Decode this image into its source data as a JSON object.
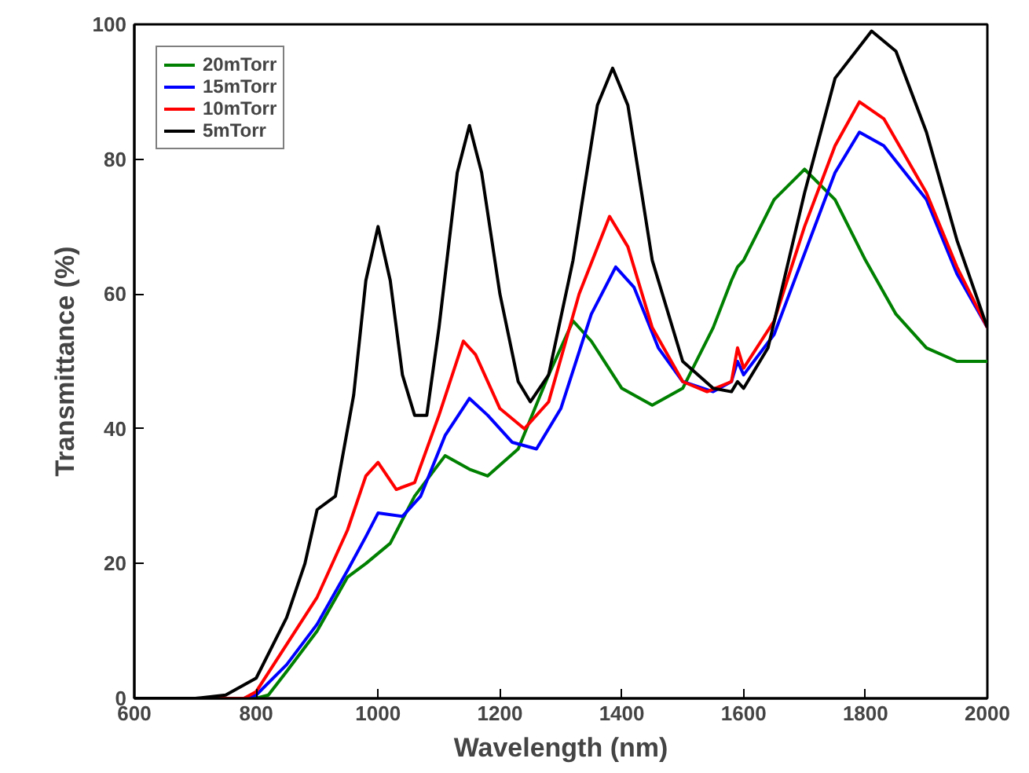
{
  "chart_data": {
    "type": "line",
    "xlabel": "Wavelength (nm)",
    "ylabel": "Transmittance (%)",
    "xlim": [
      600,
      2000
    ],
    "xticks": [
      600,
      800,
      1000,
      1200,
      1400,
      1600,
      1800,
      2000
    ],
    "ylim": [
      0,
      100
    ],
    "yticks": [
      0,
      20,
      40,
      60,
      80,
      100
    ],
    "grid": false,
    "legend": "top left",
    "marker": "none",
    "line_style": "solid",
    "series": [
      {
        "name": "20mTorr",
        "color": "#008000",
        "x": [
          600,
          700,
          800,
          820,
          850,
          900,
          950,
          980,
          1020,
          1060,
          1110,
          1150,
          1180,
          1230,
          1280,
          1320,
          1350,
          1400,
          1450,
          1500,
          1550,
          1580,
          1590,
          1600,
          1650,
          1700,
          1750,
          1800,
          1850,
          1900,
          1950,
          2000
        ],
        "values": [
          0,
          0,
          0,
          0.5,
          4,
          10,
          18,
          20,
          23,
          30,
          36,
          34,
          33,
          37,
          48,
          56,
          53,
          46,
          43.5,
          46,
          55,
          62,
          64,
          65,
          74,
          78.5,
          74,
          65,
          57,
          52,
          50,
          50
        ]
      },
      {
        "name": "15mTorr",
        "color": "#0000ff",
        "x": [
          600,
          700,
          780,
          800,
          850,
          900,
          950,
          980,
          1000,
          1040,
          1070,
          1110,
          1150,
          1180,
          1220,
          1260,
          1300,
          1350,
          1390,
          1420,
          1460,
          1500,
          1550,
          1580,
          1590,
          1600,
          1650,
          1700,
          1750,
          1790,
          1830,
          1900,
          1950,
          2000
        ],
        "values": [
          0,
          0,
          0,
          0.5,
          5,
          11,
          19,
          24,
          27.5,
          27,
          30,
          39,
          44.5,
          42,
          38,
          37,
          43,
          57,
          64,
          61,
          52,
          47,
          45.5,
          47,
          50,
          48,
          54,
          66,
          78,
          84,
          82,
          74,
          63,
          55
        ]
      },
      {
        "name": "10mTorr",
        "color": "#ff0000",
        "x": [
          600,
          700,
          780,
          800,
          850,
          900,
          950,
          980,
          1000,
          1030,
          1060,
          1100,
          1140,
          1160,
          1200,
          1240,
          1280,
          1330,
          1380,
          1410,
          1450,
          1500,
          1540,
          1580,
          1590,
          1600,
          1650,
          1700,
          1750,
          1790,
          1830,
          1900,
          1950,
          2000
        ],
        "values": [
          0,
          0,
          0,
          1,
          8,
          15,
          25,
          33,
          35,
          31,
          32,
          42,
          53,
          51,
          43,
          40,
          44,
          60,
          71.5,
          67,
          55,
          47,
          45.5,
          47,
          52,
          49,
          56,
          70,
          82,
          88.5,
          86,
          75,
          64,
          55
        ]
      },
      {
        "name": "5mTorr",
        "color": "#000000",
        "x": [
          600,
          700,
          750,
          800,
          850,
          880,
          900,
          930,
          960,
          980,
          1000,
          1020,
          1040,
          1060,
          1080,
          1100,
          1130,
          1150,
          1170,
          1200,
          1230,
          1250,
          1280,
          1320,
          1360,
          1385,
          1410,
          1450,
          1500,
          1550,
          1580,
          1590,
          1600,
          1640,
          1700,
          1750,
          1810,
          1850,
          1900,
          1950,
          2000
        ],
        "values": [
          0,
          0,
          0.5,
          3,
          12,
          20,
          28,
          30,
          45,
          62,
          70,
          62,
          48,
          42,
          42,
          55,
          78,
          85,
          78,
          60,
          47,
          44,
          48,
          65,
          88,
          93.5,
          88,
          65,
          50,
          46,
          45.5,
          47,
          46,
          52,
          75,
          92,
          99,
          96,
          84,
          68,
          55
        ]
      }
    ]
  }
}
